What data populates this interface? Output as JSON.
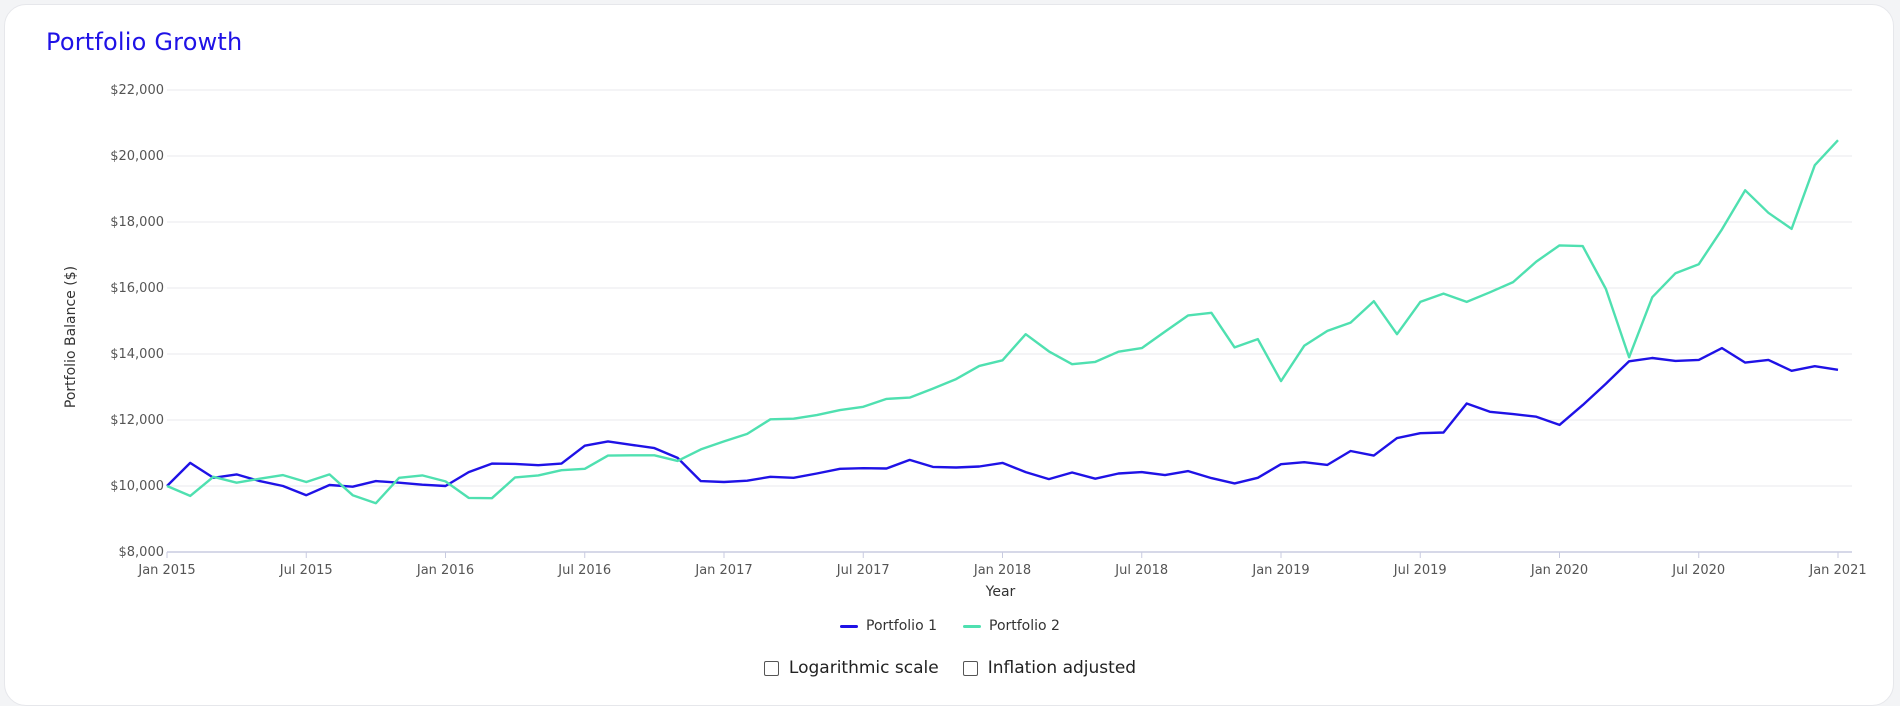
{
  "page": {
    "title": "Portfolio Growth"
  },
  "controls": {
    "log_scale_label": "Logarithmic scale",
    "inflation_label": "Inflation adjusted",
    "log_scale_checked": false,
    "inflation_checked": false
  },
  "chart_data": {
    "type": "line",
    "title": "Portfolio Growth",
    "xlabel": "Year",
    "ylabel": "Portfolio Balance ($)",
    "ylim": [
      8000,
      22000
    ],
    "y_ticks": [
      8000,
      10000,
      12000,
      14000,
      16000,
      18000,
      20000,
      22000
    ],
    "y_tick_labels": [
      "$8,000",
      "$10,000",
      "$12,000",
      "$14,000",
      "$16,000",
      "$18,000",
      "$20,000",
      "$22,000"
    ],
    "x_ticks": [
      "2015-01",
      "2015-07",
      "2016-01",
      "2016-07",
      "2017-01",
      "2017-07",
      "2018-01",
      "2018-07",
      "2019-01",
      "2019-07",
      "2020-01",
      "2020-07",
      "2021-01"
    ],
    "x_tick_labels": [
      "Jan 2015",
      "Jul 2015",
      "Jan 2016",
      "Jul 2016",
      "Jan 2017",
      "Jul 2017",
      "Jan 2018",
      "Jul 2018",
      "Jan 2019",
      "Jul 2019",
      "Jan 2020",
      "Jul 2020",
      "Jan 2021"
    ],
    "x_start": "2015-01",
    "x_end": "2021-01",
    "legend_position": "bottom",
    "grid": true,
    "series": [
      {
        "name": "Portfolio 1",
        "color": "#1f12e6",
        "values": [
          10000,
          10700,
          10250,
          10350,
          10150,
          10000,
          9720,
          10030,
          9980,
          10150,
          10100,
          10040,
          10000,
          10420,
          10680,
          10670,
          10630,
          10680,
          11220,
          11350,
          11250,
          11150,
          10850,
          10150,
          10120,
          10160,
          10280,
          10250,
          10380,
          10520,
          10540,
          10530,
          10790,
          10580,
          10560,
          10590,
          10700,
          10420,
          10210,
          10410,
          10220,
          10380,
          10420,
          10330,
          10450,
          10240,
          10080,
          10250,
          10660,
          10720,
          10640,
          11060,
          10920,
          11450,
          11600,
          11620,
          12500,
          12250,
          12180,
          12100,
          11850,
          12450,
          13100,
          13780,
          13880,
          13790,
          13820,
          14180,
          13740,
          13820,
          13490,
          13630,
          13520
        ]
      },
      {
        "name": "Portfolio 2",
        "color": "#4fe0b0",
        "values": [
          10000,
          9700,
          10280,
          10100,
          10220,
          10330,
          10120,
          10350,
          9720,
          9480,
          10250,
          10320,
          10140,
          9640,
          9630,
          10260,
          10320,
          10480,
          10520,
          10920,
          10930,
          10930,
          10760,
          11110,
          11350,
          11580,
          12020,
          12040,
          12150,
          12300,
          12400,
          12640,
          12680,
          12950,
          13240,
          13640,
          13810,
          14600,
          14080,
          13690,
          13760,
          14070,
          14180,
          14680,
          15170,
          15250,
          14200,
          14450,
          13180,
          14250,
          14700,
          14950,
          15600,
          14600,
          15580,
          15830,
          15580,
          15870,
          16180,
          16800,
          17290,
          17270,
          15970,
          13900,
          15720,
          16450,
          16720,
          17780,
          18960,
          18280,
          17790,
          19720,
          20480
        ]
      }
    ]
  }
}
